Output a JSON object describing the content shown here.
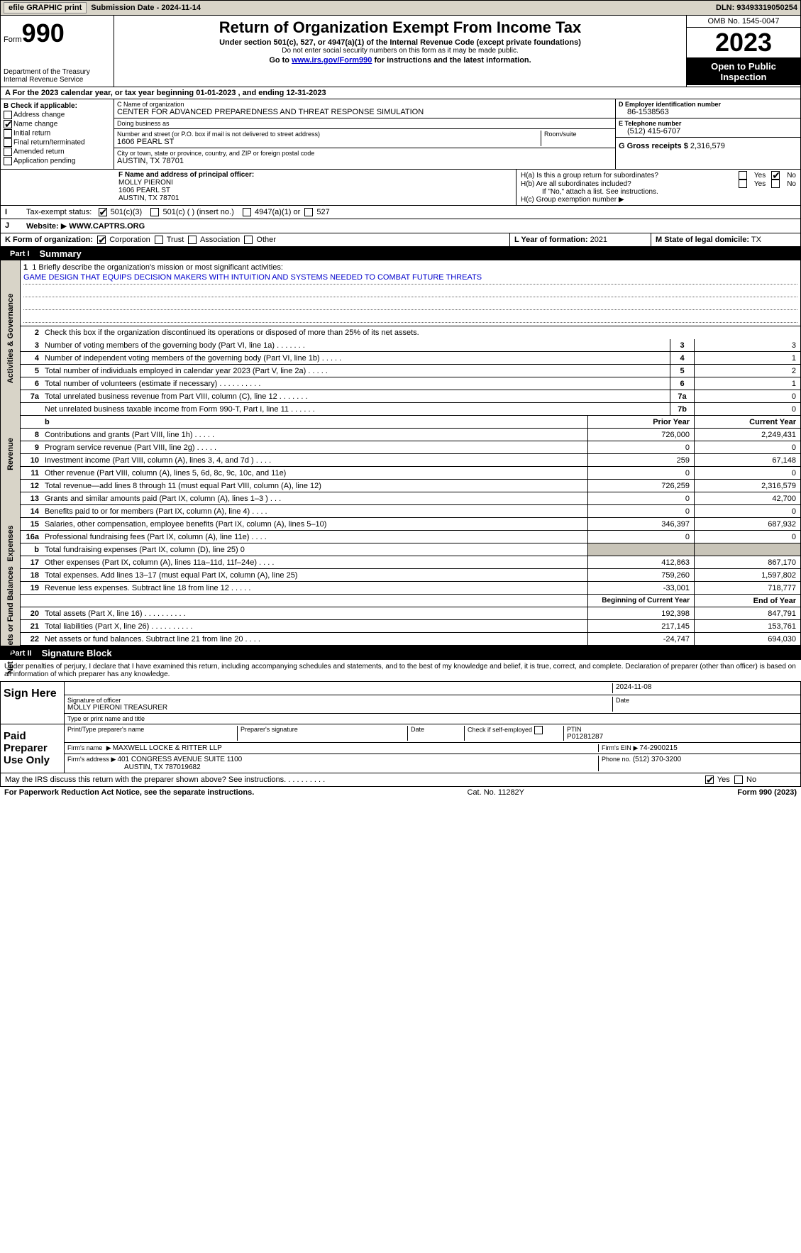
{
  "top": {
    "efile_btn": "efile GRAPHIC print",
    "sub_date_lbl": "Submission Date - 2024-11-14",
    "dln": "DLN: 93493319050254"
  },
  "header": {
    "form_word": "Form",
    "form_no": "990",
    "dept": "Department of the Treasury\nInternal Revenue Service",
    "title": "Return of Organization Exempt From Income Tax",
    "line1": "Under section 501(c), 527, or 4947(a)(1) of the Internal Revenue Code (except private foundations)",
    "line2": "Do not enter social security numbers on this form as it may be made public.",
    "line3_pre": "Go to ",
    "line3_link": "www.irs.gov/Form990",
    "line3_post": " for instructions and the latest information.",
    "omb": "OMB No. 1545-0047",
    "year": "2023",
    "open": "Open to Public Inspection"
  },
  "a_line": "For the 2023 calendar year, or tax year beginning 01-01-2023    , and ending 12-31-2023",
  "b": {
    "hdr": "B Check if applicable:",
    "addr_change": "Address change",
    "name_change": "Name change",
    "initial": "Initial return",
    "final": "Final return/terminated",
    "amended": "Amended return",
    "app_pending": "Application pending"
  },
  "c": {
    "name_lbl": "C Name of organization",
    "name": "CENTER FOR ADVANCED PREPAREDNESS AND THREAT RESPONSE SIMULATION",
    "dba_lbl": "Doing business as",
    "dba": "",
    "street_lbl": "Number and street (or P.O. box if mail is not delivered to street address)",
    "room_lbl": "Room/suite",
    "street": "1606 PEARL ST",
    "city_lbl": "City or town, state or province, country, and ZIP or foreign postal code",
    "city": "AUSTIN, TX  78701"
  },
  "d": {
    "lbl": "D Employer identification number",
    "val": "86-1538563"
  },
  "e": {
    "lbl": "E Telephone number",
    "val": "(512) 415-6707"
  },
  "g": {
    "lbl": "G Gross receipts $",
    "val": "2,316,579"
  },
  "f": {
    "lbl": "F  Name and address of principal officer:",
    "name": "MOLLY PIERONI",
    "street": "1606 PEARL ST",
    "city": "AUSTIN, TX  78701"
  },
  "h": {
    "a_lbl": "H(a)  Is this a group return for subordinates?",
    "b_lbl": "H(b)  Are all subordinates included?",
    "b_note": "If \"No,\" attach a list. See instructions.",
    "c_lbl": "H(c)  Group exemption number",
    "c_arrow": "▶",
    "yes": "Yes",
    "no": "No"
  },
  "i": {
    "lbl": "Tax-exempt status:",
    "o1": "501(c)(3)",
    "o2": "501(c) (  ) (insert no.)",
    "o3": "4947(a)(1) or",
    "o4": "527"
  },
  "j": {
    "lbl": "Website:",
    "arrow": "▶",
    "val": "WWW.CAPTRS.ORG"
  },
  "k": {
    "lbl": "K Form of organization:",
    "o1": "Corporation",
    "o2": "Trust",
    "o3": "Association",
    "o4": "Other"
  },
  "l": {
    "lbl": "L Year of formation:",
    "val": "2021"
  },
  "m": {
    "lbl": "M State of legal domicile:",
    "val": "TX"
  },
  "part1": {
    "num": "Part I",
    "title": "Summary"
  },
  "summary": {
    "side_gov": "Activities & Governance",
    "side_rev": "Revenue",
    "side_exp": "Expenses",
    "side_net": "Net Assets or Fund Balances",
    "l1_lbl": "1  Briefly describe the organization's mission or most significant activities:",
    "l1_val": "GAME DESIGN THAT EQUIPS DECISION MAKERS WITH INTUITION AND SYSTEMS NEEDED TO COMBAT FUTURE THREATS",
    "l2": "Check this box        if the organization discontinued its operations or disposed of more than 25% of its net assets.",
    "hdr_prior": "Prior Year",
    "hdr_curr": "Current Year",
    "hdr_beg": "Beginning of Current Year",
    "hdr_end": "End of Year",
    "rows_gov": [
      {
        "n": "3",
        "d": "Number of voting members of the governing body (Part VI, line 1a)   .     .     .     .     .     .     .",
        "b": "3",
        "v": "3"
      },
      {
        "n": "4",
        "d": "Number of independent voting members of the governing body (Part VI, line 1b)   .     .     .     .     .",
        "b": "4",
        "v": "1"
      },
      {
        "n": "5",
        "d": "Total number of individuals employed in calendar year 2023 (Part V, line 2a)   .     .     .     .     .",
        "b": "5",
        "v": "2"
      },
      {
        "n": "6",
        "d": "Total number of volunteers (estimate if necessary)    .     .     .     .     .     .     .     .     .     .",
        "b": "6",
        "v": "1"
      },
      {
        "n": "7a",
        "d": "Total unrelated business revenue from Part VIII, column (C), line 12    .     .     .     .     .     .     .",
        "b": "7a",
        "v": "0"
      },
      {
        "n": "",
        "d": "Net unrelated business taxable income from Form 990-T, Part I, line 11    .     .     .     .     .     .",
        "b": "7b",
        "v": "0"
      }
    ],
    "b_label": "b",
    "rows_rev": [
      {
        "n": "8",
        "d": "Contributions and grants (Part VIII, line 1h)    .     .     .     .     .",
        "p": "726,000",
        "c": "2,249,431"
      },
      {
        "n": "9",
        "d": "Program service revenue (Part VIII, line 2g)    .     .     .     .     .",
        "p": "0",
        "c": "0"
      },
      {
        "n": "10",
        "d": "Investment income (Part VIII, column (A), lines 3, 4, and 7d )    .     .     .     .",
        "p": "259",
        "c": "67,148"
      },
      {
        "n": "11",
        "d": "Other revenue (Part VIII, column (A), lines 5, 6d, 8c, 9c, 10c, and 11e)",
        "p": "0",
        "c": "0"
      },
      {
        "n": "12",
        "d": "Total revenue—add lines 8 through 11 (must equal Part VIII, column (A), line 12)",
        "p": "726,259",
        "c": "2,316,579"
      }
    ],
    "rows_exp": [
      {
        "n": "13",
        "d": "Grants and similar amounts paid (Part IX, column (A), lines 1–3 )    .    .    .",
        "p": "0",
        "c": "42,700"
      },
      {
        "n": "14",
        "d": "Benefits paid to or for members (Part IX, column (A), line 4)    .     .     .     .",
        "p": "0",
        "c": "0"
      },
      {
        "n": "15",
        "d": "Salaries, other compensation, employee benefits (Part IX, column (A), lines 5–10)",
        "p": "346,397",
        "c": "687,932"
      },
      {
        "n": "16a",
        "d": "Professional fundraising fees (Part IX, column (A), line 11e)    .     .     .     .",
        "p": "0",
        "c": "0"
      }
    ],
    "l16b_n": "b",
    "l16b": "Total fundraising expenses (Part IX, column (D), line 25)  0",
    "rows_exp2": [
      {
        "n": "17",
        "d": "Other expenses (Part IX, column (A), lines 11a–11d, 11f–24e)    .     .     .     .",
        "p": "412,863",
        "c": "867,170"
      },
      {
        "n": "18",
        "d": "Total expenses. Add lines 13–17 (must equal Part IX, column (A), line 25)",
        "p": "759,260",
        "c": "1,597,802"
      },
      {
        "n": "19",
        "d": "Revenue less expenses. Subtract line 18 from line 12    .     .     .     .     .",
        "p": "-33,001",
        "c": "718,777"
      }
    ],
    "rows_net": [
      {
        "n": "20",
        "d": "Total assets (Part X, line 16)    .     .     .     .     .     .     .     .     .     .",
        "p": "192,398",
        "c": "847,791"
      },
      {
        "n": "21",
        "d": "Total liabilities (Part X, line 26)    .     .     .     .     .     .     .     .     .     .",
        "p": "217,145",
        "c": "153,761"
      },
      {
        "n": "22",
        "d": "Net assets or fund balances. Subtract line 21 from line 20    .     .     .     .",
        "p": "-24,747",
        "c": "694,030"
      }
    ]
  },
  "part2": {
    "num": "Part II",
    "title": "Signature Block"
  },
  "penalties": "Under penalties of perjury, I declare that I have examined this return, including accompanying schedules and statements, and to the best of my knowledge and belief, it is true, correct, and complete. Declaration of preparer (other than officer) is based on all information of which preparer has any knowledge.",
  "sign": {
    "here": "Sign Here",
    "sig_lbl": "Signature of officer",
    "name": "MOLLY PIERONI  TREASURER",
    "name_lbl": "Type or print name and title",
    "date_lbl": "Date",
    "date": "2024-11-08"
  },
  "paid": {
    "hdr": "Paid Preparer Use Only",
    "prep_name_lbl": "Print/Type preparer's name",
    "prep_sig_lbl": "Preparer's signature",
    "date_lbl": "Date",
    "chk_lbl": "Check        if self-employed",
    "ptin_lbl": "PTIN",
    "ptin": "P01281287",
    "firm_name_lbl": "Firm's name",
    "firm_name": "MAXWELL LOCKE & RITTER LLP",
    "firm_ein_lbl": "Firm's EIN",
    "firm_ein": "74-2900215",
    "firm_addr_lbl": "Firm's address",
    "firm_addr": "401 CONGRESS AVENUE SUITE 1100",
    "firm_city": "AUSTIN, TX  787019682",
    "phone_lbl": "Phone no.",
    "phone": "(512) 370-3200"
  },
  "discuss": {
    "txt": "May the IRS discuss this return with the preparer shown above? See instructions.    .     .     .     .     .     .     .     .     .",
    "yes": "Yes",
    "no": "No"
  },
  "footer": {
    "left": "For Paperwork Reduction Act Notice, see the separate instructions.",
    "mid": "Cat. No. 11282Y",
    "right": "Form 990 (2023)"
  }
}
